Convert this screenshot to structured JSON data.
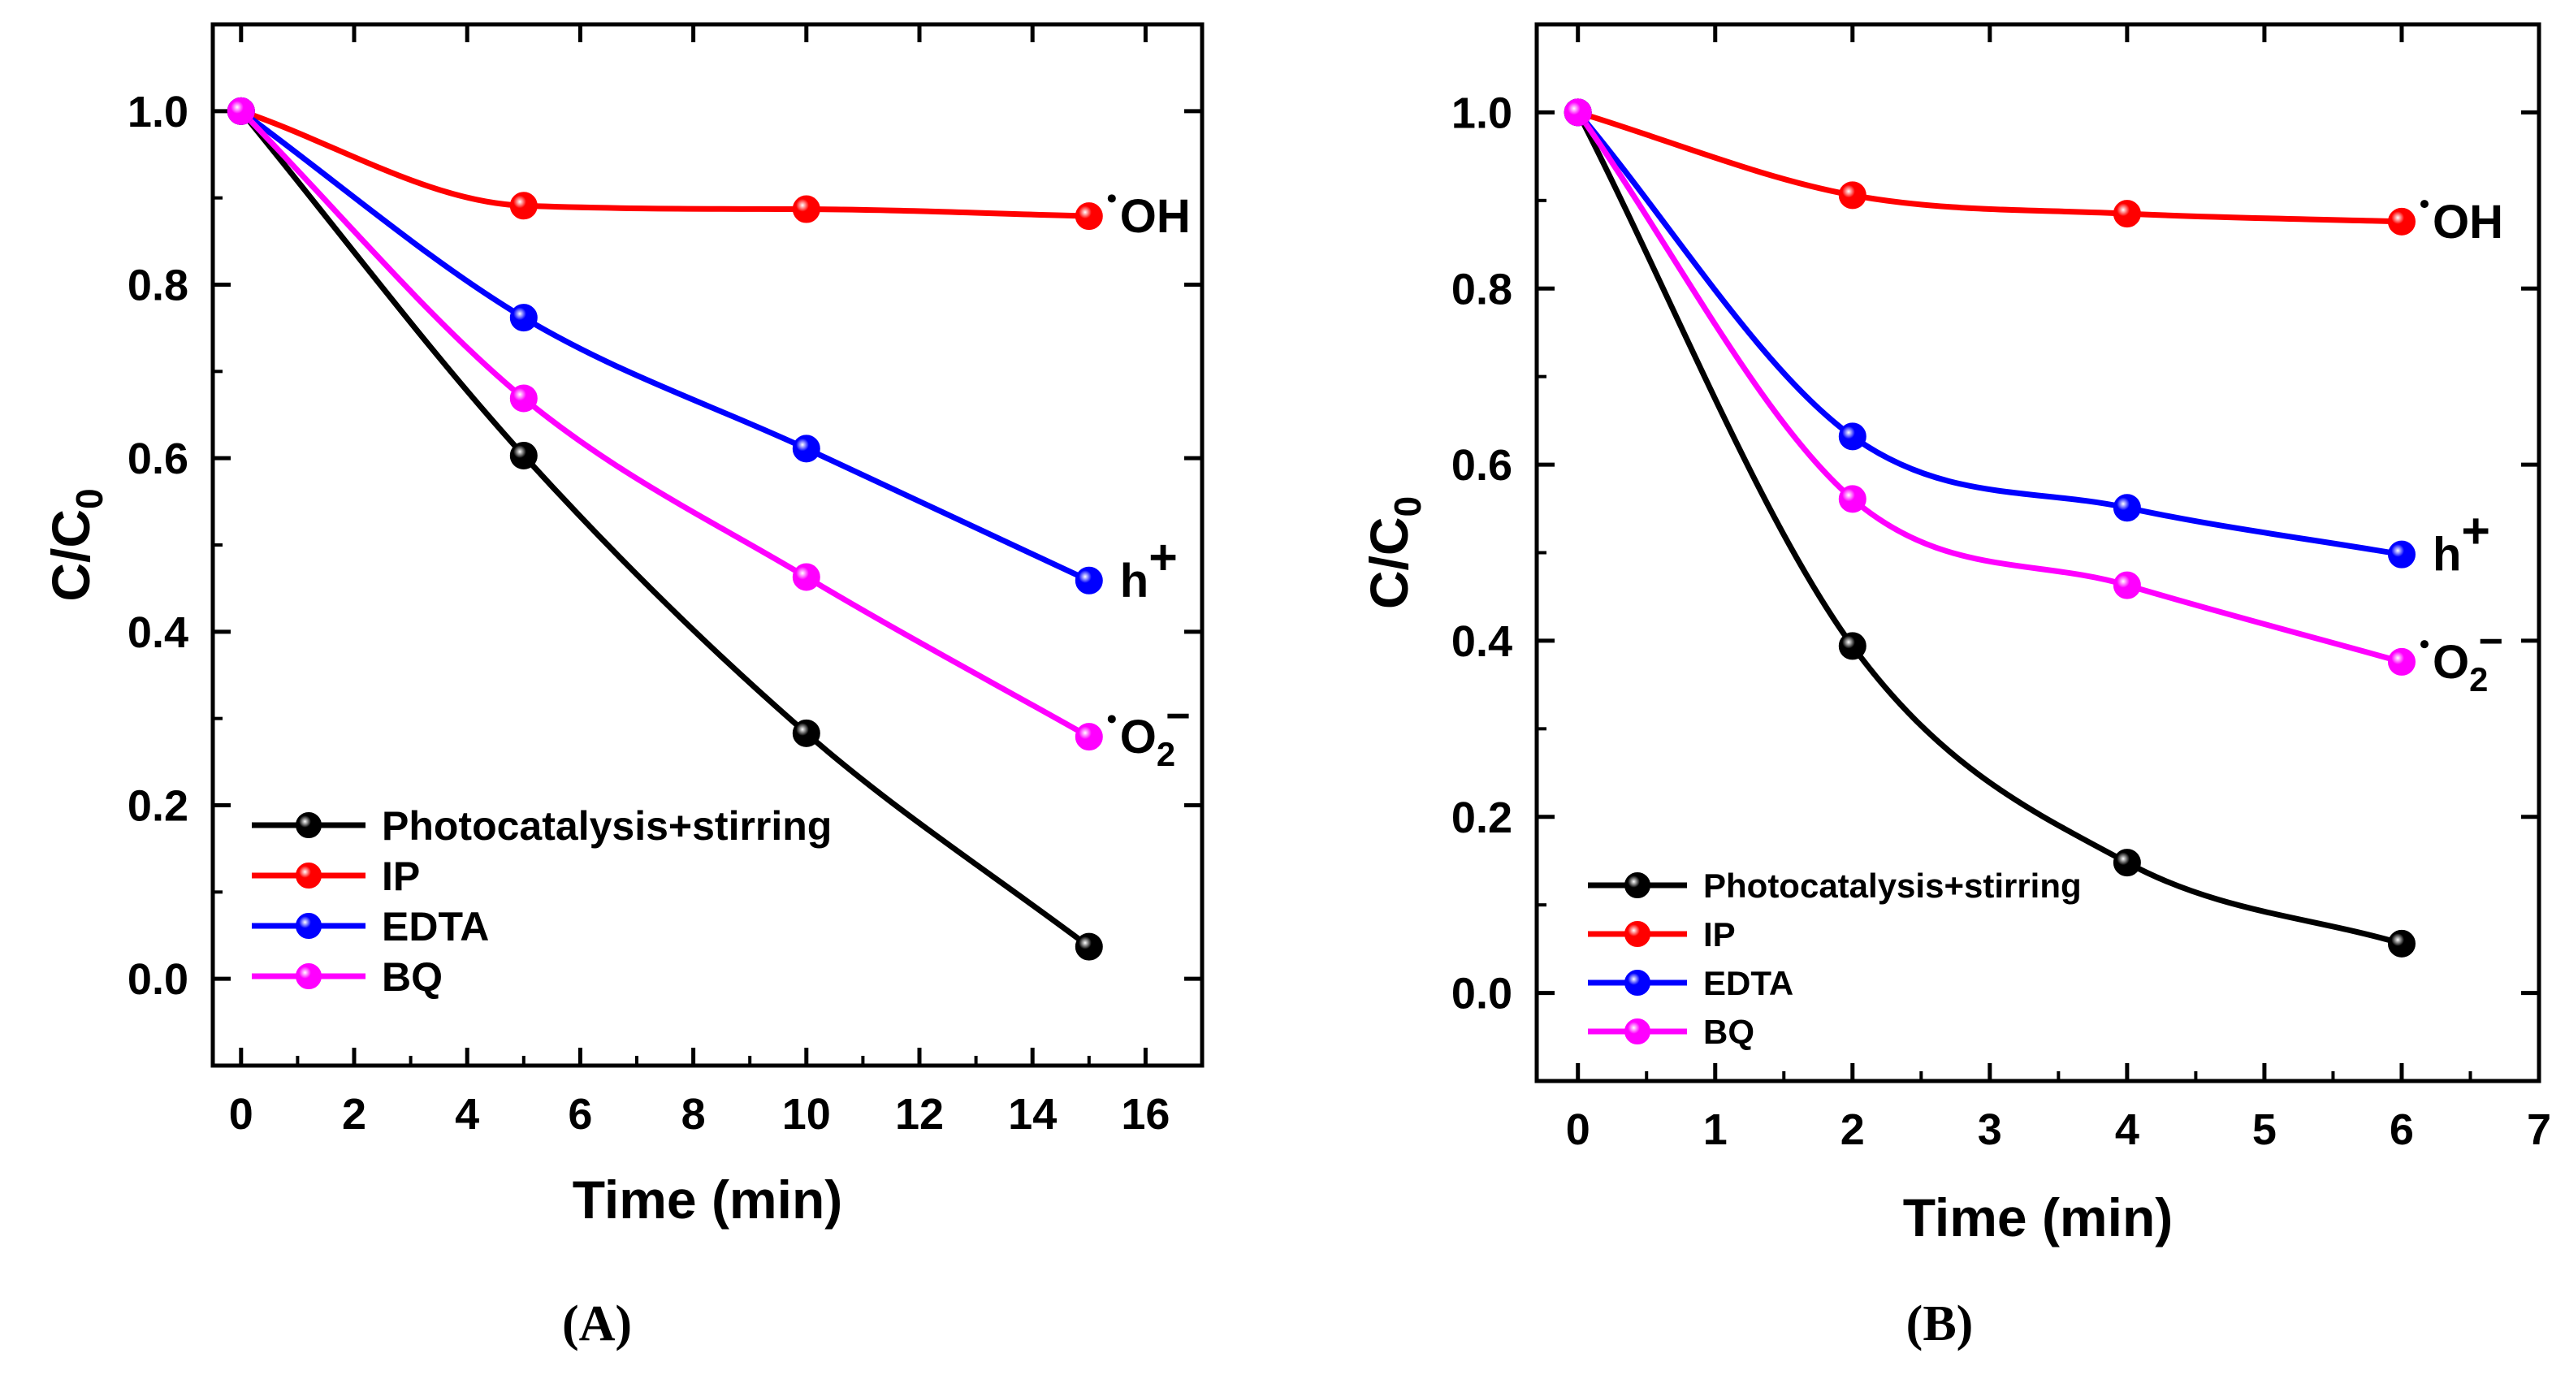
{
  "chart_data": [
    {
      "type": "line",
      "panel_label": "(A)",
      "xlabel": "Time (min)",
      "ylabel": {
        "main": "C/C",
        "sub": "0"
      },
      "xlim": [
        -0.5,
        17
      ],
      "ylim": [
        -0.1,
        1.1
      ],
      "x_ticks": [
        0,
        2,
        4,
        6,
        8,
        10,
        12,
        14,
        16
      ],
      "y_ticks": [
        0.0,
        0.2,
        0.4,
        0.6,
        0.8,
        1.0
      ],
      "x_tick_labels": [
        "0",
        "2",
        "4",
        "6",
        "8",
        "10",
        "12",
        "14",
        "16"
      ],
      "y_tick_labels": [
        "0.0",
        "0.2",
        "0.4",
        "0.6",
        "0.8",
        "1.0"
      ],
      "x": [
        0,
        5,
        10,
        15
      ],
      "legend_position": "bottom-left",
      "series": [
        {
          "name": "Photocatalysis+stirring",
          "color": "#000000",
          "values": [
            1.0,
            0.603,
            0.283,
            0.037
          ]
        },
        {
          "name": "IP",
          "color": "#ff0000",
          "values": [
            1.0,
            0.891,
            0.887,
            0.879
          ],
          "end_label": {
            "main": "OH",
            "sup": "",
            "sub": ""
          }
        },
        {
          "name": "EDTA",
          "color": "#0000ff",
          "values": [
            1.0,
            0.762,
            0.611,
            0.459
          ],
          "end_label": {
            "main": "h",
            "sup": "+",
            "sub": ""
          }
        },
        {
          "name": "BQ",
          "color": "#ff00ff",
          "values": [
            1.0,
            0.669,
            0.463,
            0.279
          ],
          "end_label": {
            "main": "O",
            "sup": "−",
            "sub": "2"
          }
        }
      ]
    },
    {
      "type": "line",
      "panel_label": "(B)",
      "xlabel": "Time (min)",
      "ylabel": {
        "main": "C/C",
        "sub": "0"
      },
      "xlim": [
        -0.3,
        7
      ],
      "ylim": [
        -0.1,
        1.1
      ],
      "x_ticks": [
        0,
        1,
        2,
        3,
        4,
        5,
        6,
        7
      ],
      "y_ticks": [
        0.0,
        0.2,
        0.4,
        0.6,
        0.8,
        1.0
      ],
      "x_tick_labels": [
        "0",
        "1",
        "2",
        "3",
        "4",
        "5",
        "6",
        "7"
      ],
      "y_tick_labels": [
        "0.0",
        "0.2",
        "0.4",
        "0.6",
        "0.8",
        "1.0"
      ],
      "x": [
        0,
        2,
        4,
        6
      ],
      "legend_position": "bottom-left",
      "series": [
        {
          "name": "Photocatalysis+stirring",
          "color": "#000000",
          "values": [
            1.0,
            0.394,
            0.148,
            0.056
          ]
        },
        {
          "name": "IP",
          "color": "#ff0000",
          "values": [
            1.0,
            0.906,
            0.885,
            0.876
          ],
          "end_label": {
            "main": "OH",
            "sup": "",
            "sub": ""
          }
        },
        {
          "name": "EDTA",
          "color": "#0000ff",
          "values": [
            1.0,
            0.632,
            0.551,
            0.498
          ],
          "end_label": {
            "main": "h",
            "sup": "+",
            "sub": ""
          }
        },
        {
          "name": "BQ",
          "color": "#ff00ff",
          "values": [
            1.0,
            0.561,
            0.463,
            0.376
          ],
          "end_label": {
            "main": "O",
            "sup": "−",
            "sub": "2"
          }
        }
      ]
    }
  ]
}
